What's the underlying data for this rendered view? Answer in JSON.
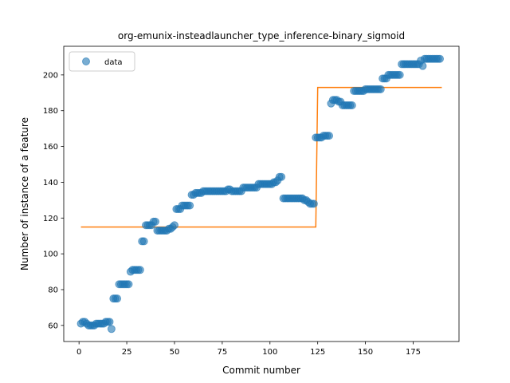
{
  "chart_data": {
    "type": "scatter",
    "title": "org-emunix-insteadlauncher_type_inference-binary_sigmoid",
    "xlabel": "Commit number",
    "ylabel": "Number of instance of a feature",
    "xlim": [
      -8,
      199
    ],
    "ylim": [
      51,
      216
    ],
    "xticks": [
      0,
      25,
      50,
      75,
      100,
      125,
      150,
      175
    ],
    "yticks": [
      60,
      80,
      100,
      120,
      140,
      160,
      180,
      200
    ],
    "grid": false,
    "legend": {
      "position": "upper-left",
      "entries": [
        "data"
      ]
    },
    "colors": {
      "data": "#1f77b4",
      "fit": "#ff7f0e"
    },
    "series": [
      {
        "name": "data",
        "kind": "scatter",
        "points": [
          [
            1,
            61
          ],
          [
            2,
            62
          ],
          [
            3,
            62
          ],
          [
            4,
            61
          ],
          [
            5,
            60
          ],
          [
            6,
            60
          ],
          [
            7,
            60
          ],
          [
            8,
            60
          ],
          [
            9,
            61
          ],
          [
            10,
            61
          ],
          [
            11,
            61
          ],
          [
            12,
            61
          ],
          [
            13,
            61
          ],
          [
            14,
            62
          ],
          [
            15,
            62
          ],
          [
            16,
            62
          ],
          [
            17,
            58
          ],
          [
            18,
            75
          ],
          [
            19,
            75
          ],
          [
            20,
            75
          ],
          [
            21,
            83
          ],
          [
            22,
            83
          ],
          [
            23,
            83
          ],
          [
            24,
            83
          ],
          [
            25,
            83
          ],
          [
            26,
            83
          ],
          [
            27,
            90
          ],
          [
            28,
            91
          ],
          [
            29,
            91
          ],
          [
            30,
            91
          ],
          [
            31,
            91
          ],
          [
            32,
            91
          ],
          [
            33,
            107
          ],
          [
            34,
            107
          ],
          [
            35,
            116
          ],
          [
            36,
            116
          ],
          [
            37,
            116
          ],
          [
            38,
            116
          ],
          [
            39,
            118
          ],
          [
            40,
            118
          ],
          [
            41,
            113
          ],
          [
            42,
            113
          ],
          [
            43,
            113
          ],
          [
            44,
            113
          ],
          [
            45,
            113
          ],
          [
            46,
            113
          ],
          [
            47,
            114
          ],
          [
            48,
            114
          ],
          [
            49,
            115
          ],
          [
            50,
            116
          ],
          [
            51,
            125
          ],
          [
            52,
            125
          ],
          [
            53,
            125
          ],
          [
            54,
            127
          ],
          [
            55,
            127
          ],
          [
            56,
            127
          ],
          [
            57,
            127
          ],
          [
            58,
            127
          ],
          [
            59,
            133
          ],
          [
            60,
            133
          ],
          [
            61,
            134
          ],
          [
            62,
            134
          ],
          [
            63,
            134
          ],
          [
            64,
            134
          ],
          [
            65,
            135
          ],
          [
            66,
            135
          ],
          [
            67,
            135
          ],
          [
            68,
            135
          ],
          [
            69,
            135
          ],
          [
            70,
            135
          ],
          [
            71,
            135
          ],
          [
            72,
            135
          ],
          [
            73,
            135
          ],
          [
            74,
            135
          ],
          [
            75,
            135
          ],
          [
            76,
            135
          ],
          [
            77,
            135
          ],
          [
            78,
            136
          ],
          [
            79,
            136
          ],
          [
            80,
            135
          ],
          [
            81,
            135
          ],
          [
            82,
            135
          ],
          [
            83,
            135
          ],
          [
            84,
            135
          ],
          [
            85,
            135
          ],
          [
            86,
            137
          ],
          [
            87,
            137
          ],
          [
            88,
            137
          ],
          [
            89,
            137
          ],
          [
            90,
            137
          ],
          [
            91,
            137
          ],
          [
            92,
            137
          ],
          [
            93,
            137
          ],
          [
            94,
            139
          ],
          [
            95,
            139
          ],
          [
            96,
            139
          ],
          [
            97,
            139
          ],
          [
            98,
            139
          ],
          [
            99,
            139
          ],
          [
            100,
            139
          ],
          [
            101,
            139
          ],
          [
            102,
            140
          ],
          [
            103,
            140
          ],
          [
            104,
            141
          ],
          [
            105,
            143
          ],
          [
            106,
            143
          ],
          [
            107,
            131
          ],
          [
            108,
            131
          ],
          [
            109,
            131
          ],
          [
            110,
            131
          ],
          [
            111,
            131
          ],
          [
            112,
            131
          ],
          [
            113,
            131
          ],
          [
            114,
            131
          ],
          [
            115,
            131
          ],
          [
            116,
            131
          ],
          [
            117,
            131
          ],
          [
            118,
            130
          ],
          [
            119,
            130
          ],
          [
            120,
            129
          ],
          [
            121,
            128
          ],
          [
            122,
            128
          ],
          [
            123,
            128
          ],
          [
            124,
            165
          ],
          [
            125,
            165
          ],
          [
            126,
            165
          ],
          [
            127,
            165
          ],
          [
            128,
            166
          ],
          [
            129,
            166
          ],
          [
            130,
            166
          ],
          [
            131,
            166
          ],
          [
            132,
            184
          ],
          [
            133,
            186
          ],
          [
            134,
            186
          ],
          [
            135,
            186
          ],
          [
            136,
            185
          ],
          [
            137,
            185
          ],
          [
            138,
            183
          ],
          [
            139,
            183
          ],
          [
            140,
            183
          ],
          [
            141,
            183
          ],
          [
            142,
            183
          ],
          [
            143,
            183
          ],
          [
            144,
            191
          ],
          [
            145,
            191
          ],
          [
            146,
            191
          ],
          [
            147,
            191
          ],
          [
            148,
            191
          ],
          [
            149,
            191
          ],
          [
            150,
            192
          ],
          [
            151,
            192
          ],
          [
            152,
            192
          ],
          [
            153,
            192
          ],
          [
            154,
            192
          ],
          [
            155,
            192
          ],
          [
            156,
            192
          ],
          [
            157,
            192
          ],
          [
            158,
            192
          ],
          [
            159,
            198
          ],
          [
            160,
            198
          ],
          [
            161,
            198
          ],
          [
            162,
            200
          ],
          [
            163,
            200
          ],
          [
            164,
            200
          ],
          [
            165,
            200
          ],
          [
            166,
            200
          ],
          [
            167,
            200
          ],
          [
            168,
            200
          ],
          [
            169,
            206
          ],
          [
            170,
            206
          ],
          [
            171,
            206
          ],
          [
            172,
            206
          ],
          [
            173,
            206
          ],
          [
            174,
            206
          ],
          [
            175,
            206
          ],
          [
            176,
            206
          ],
          [
            177,
            206
          ],
          [
            178,
            206
          ],
          [
            179,
            208
          ],
          [
            180,
            205
          ],
          [
            181,
            209
          ],
          [
            182,
            209
          ],
          [
            183,
            209
          ],
          [
            184,
            209
          ],
          [
            185,
            209
          ],
          [
            186,
            209
          ],
          [
            187,
            209
          ],
          [
            188,
            209
          ],
          [
            189,
            209
          ]
        ]
      },
      {
        "kind": "line",
        "points": [
          [
            1,
            115
          ],
          [
            124,
            115
          ],
          [
            125,
            193
          ],
          [
            190,
            193
          ]
        ]
      }
    ]
  }
}
